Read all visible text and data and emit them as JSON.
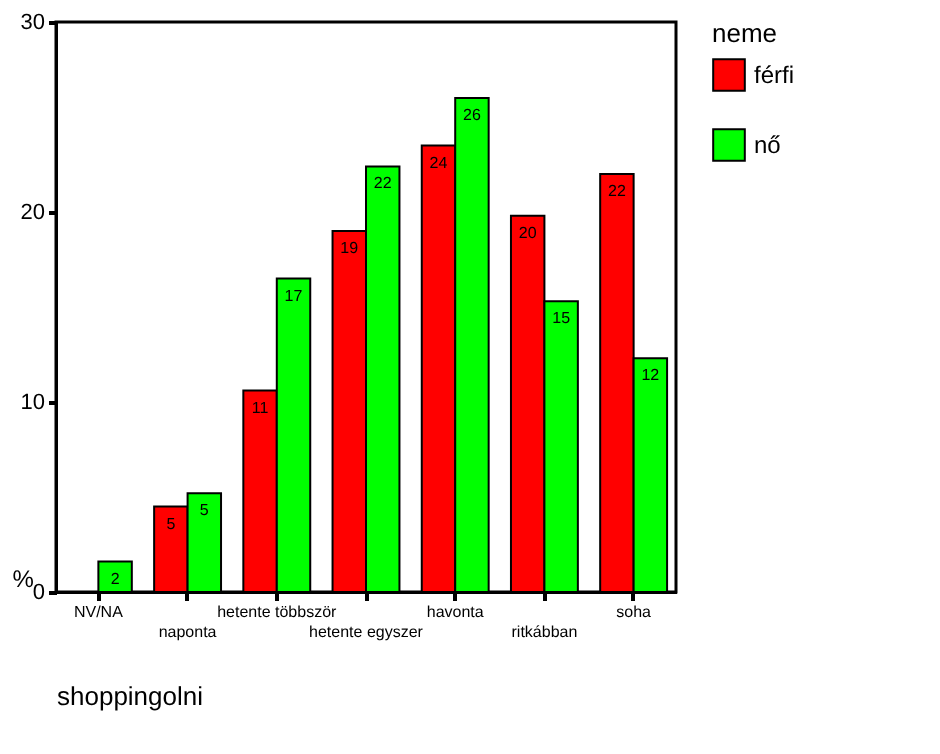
{
  "chart_data": {
    "type": "bar",
    "xlabel": "shoppingolni",
    "ylabel": "%",
    "legend_title": "neme",
    "categories": [
      "NV/NA",
      "naponta",
      "hetente többször",
      "hetente egyszer",
      "havonta",
      "ritkábban",
      "soha"
    ],
    "series": [
      {
        "name": "férfi",
        "color": "#ff0000",
        "values": [
          null,
          4.5,
          10.6,
          19.0,
          23.5,
          19.8,
          22.0
        ],
        "value_labels": [
          null,
          "5",
          "11",
          "19",
          "24",
          "20",
          "22"
        ]
      },
      {
        "name": "nő",
        "color": "#00ff00",
        "values": [
          1.6,
          5.2,
          16.5,
          22.4,
          26.0,
          15.3,
          12.3
        ],
        "value_labels": [
          "2",
          "5",
          "17",
          "22",
          "26",
          "15",
          "12"
        ]
      }
    ],
    "ylim": [
      0,
      30
    ],
    "yticks": [
      0,
      10,
      20,
      30
    ],
    "grid": false,
    "legend": "right"
  }
}
